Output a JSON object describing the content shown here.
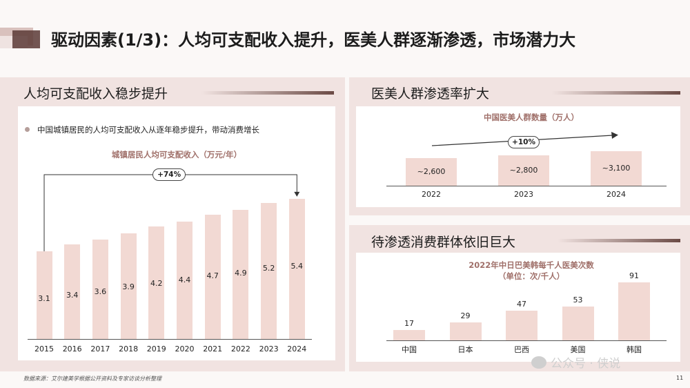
{
  "page": {
    "title": "驱动因素(1/3)：人均可支配收入提升，医美人群逐渐渗透，市场潜力大",
    "footnote": "数据来源：艾尔建美学根据公开资料及专家访谈分析整理",
    "page_number": "11",
    "watermark": "公众号 · 侠说"
  },
  "left_panel": {
    "title": "人均可支配收入稳步提升",
    "bullet": "中国城镇居民的人均可支配收入从逐年稳步提升，带动消费增长"
  },
  "right_top_panel": {
    "title": "医美人群渗透率扩大"
  },
  "right_bottom_panel": {
    "title": "待渗透消费群体依旧巨大"
  },
  "chart_data": [
    {
      "type": "bar",
      "title": "城镇居民人均可支配收入（万元/年）",
      "categories": [
        "2015",
        "2016",
        "2017",
        "2018",
        "2019",
        "2020",
        "2021",
        "2022",
        "2023",
        "2024"
      ],
      "values": [
        3.1,
        3.4,
        3.6,
        3.9,
        4.2,
        4.4,
        4.7,
        4.9,
        5.2,
        5.4
      ],
      "value_labels": [
        "3.1",
        "3.4",
        "3.6",
        "3.9",
        "4.2",
        "4.4",
        "4.7",
        "4.9",
        "5.2",
        "5.4"
      ],
      "annotation": "+74%",
      "ylim": [
        0,
        6
      ]
    },
    {
      "type": "bar",
      "title": "中国医美人群数量（万人）",
      "categories": [
        "2022",
        "2023",
        "2024"
      ],
      "values": [
        2600,
        2800,
        3100
      ],
      "value_labels": [
        "~2,600",
        "~2,800",
        "~3,100"
      ],
      "annotation": "+10%",
      "ylim": [
        0,
        3100
      ]
    },
    {
      "type": "bar",
      "title": "2022年中日巴美韩每千人医美次数",
      "subtitle": "（单位：次/千人）",
      "categories": [
        "中国",
        "日本",
        "巴西",
        "美国",
        "韩国"
      ],
      "values": [
        17,
        29,
        47,
        53,
        91
      ],
      "value_labels": [
        "17",
        "29",
        "47",
        "53",
        "91"
      ],
      "ylim": [
        0,
        91
      ]
    }
  ]
}
